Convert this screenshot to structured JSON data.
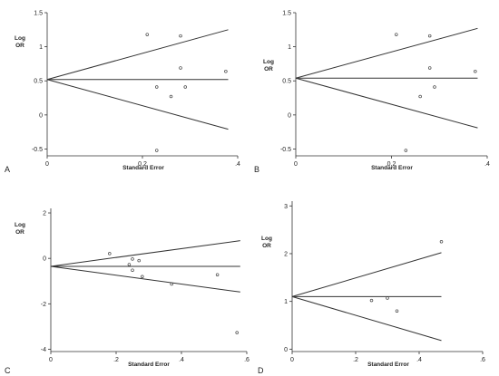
{
  "chart_data": [
    {
      "type": "scatter",
      "panel_label": "A",
      "xlabel": "Standard Error",
      "ylabel": [
        "Log",
        "OR"
      ],
      "xlim": [
        0,
        0.4
      ],
      "ylim": [
        -0.6,
        1.5
      ],
      "x_ticks": [
        0,
        0.2,
        0.4
      ],
      "x_tick_labels": [
        "0",
        "0.2",
        ".4"
      ],
      "y_ticks": [
        -0.5,
        0,
        0.5,
        1,
        1.5
      ],
      "y_tick_labels": [
        "-0.5",
        "0",
        "0.5",
        "1",
        "1.5"
      ],
      "pooled_log_or": 0.52,
      "funnel_max_se": 0.38,
      "funnel_upper_end": 1.25,
      "funnel_lower_end": -0.21,
      "points": [
        {
          "x": 0.21,
          "y": 1.18
        },
        {
          "x": 0.28,
          "y": 1.16
        },
        {
          "x": 0.28,
          "y": 0.69
        },
        {
          "x": 0.375,
          "y": 0.64
        },
        {
          "x": 0.23,
          "y": 0.41
        },
        {
          "x": 0.29,
          "y": 0.41
        },
        {
          "x": 0.26,
          "y": 0.27
        },
        {
          "x": 0.23,
          "y": -0.52
        }
      ]
    },
    {
      "type": "scatter",
      "panel_label": "B",
      "xlabel": "Standard Error",
      "ylabel": [
        "Log",
        "OR"
      ],
      "xlim": [
        0,
        0.4
      ],
      "ylim": [
        -0.6,
        1.5
      ],
      "x_ticks": [
        0,
        0.2,
        0.4
      ],
      "x_tick_labels": [
        "0",
        "0.2",
        ".4"
      ],
      "y_ticks": [
        -0.5,
        0,
        0.5,
        1,
        1.5
      ],
      "y_tick_labels": [
        "-0.5",
        "0",
        "0.5",
        "1",
        "1.5"
      ],
      "pooled_log_or": 0.54,
      "funnel_max_se": 0.38,
      "funnel_upper_end": 1.27,
      "funnel_lower_end": -0.19,
      "points": [
        {
          "x": 0.21,
          "y": 1.18
        },
        {
          "x": 0.28,
          "y": 1.16
        },
        {
          "x": 0.28,
          "y": 0.69
        },
        {
          "x": 0.375,
          "y": 0.64
        },
        {
          "x": 0.29,
          "y": 0.41
        },
        {
          "x": 0.26,
          "y": 0.27
        },
        {
          "x": 0.23,
          "y": -0.52
        }
      ]
    },
    {
      "type": "scatter",
      "panel_label": "C",
      "xlabel": "Standard Error",
      "ylabel": [
        "Log",
        "OR"
      ],
      "xlim": [
        0,
        0.6
      ],
      "ylim": [
        -4.1,
        2.2
      ],
      "x_ticks": [
        0,
        0.2,
        0.4,
        0.6
      ],
      "x_tick_labels": [
        "0",
        ".2",
        ".4",
        ".6"
      ],
      "y_ticks": [
        -4,
        -2,
        0,
        2
      ],
      "y_tick_labels": [
        "-4",
        "-2",
        "0",
        "2"
      ],
      "pooled_log_or": -0.35,
      "funnel_max_se": 0.58,
      "funnel_upper_end": 0.78,
      "funnel_lower_end": -1.48,
      "points": [
        {
          "x": 0.18,
          "y": 0.21
        },
        {
          "x": 0.25,
          "y": -0.03
        },
        {
          "x": 0.27,
          "y": -0.1
        },
        {
          "x": 0.24,
          "y": -0.27
        },
        {
          "x": 0.25,
          "y": -0.52
        },
        {
          "x": 0.28,
          "y": -0.8
        },
        {
          "x": 0.37,
          "y": -1.13
        },
        {
          "x": 0.51,
          "y": -0.72
        },
        {
          "x": 0.57,
          "y": -3.27
        }
      ]
    },
    {
      "type": "scatter",
      "panel_label": "D",
      "xlabel": "Standard Error",
      "ylabel": [
        "Log",
        "OR"
      ],
      "xlim": [
        0,
        0.6
      ],
      "ylim": [
        -0.05,
        3.1
      ],
      "x_ticks": [
        0,
        0.2,
        0.4,
        0.6
      ],
      "x_tick_labels": [
        "0",
        ".2",
        ".4",
        ".6"
      ],
      "y_ticks": [
        0,
        1,
        2,
        3
      ],
      "y_tick_labels": [
        "0",
        "1",
        "2",
        "3"
      ],
      "pooled_log_or": 1.1,
      "funnel_max_se": 0.47,
      "funnel_upper_end": 2.02,
      "funnel_lower_end": 0.18,
      "points": [
        {
          "x": 0.47,
          "y": 2.25
        },
        {
          "x": 0.3,
          "y": 1.07
        },
        {
          "x": 0.25,
          "y": 1.02
        },
        {
          "x": 0.33,
          "y": 0.8
        }
      ]
    }
  ]
}
